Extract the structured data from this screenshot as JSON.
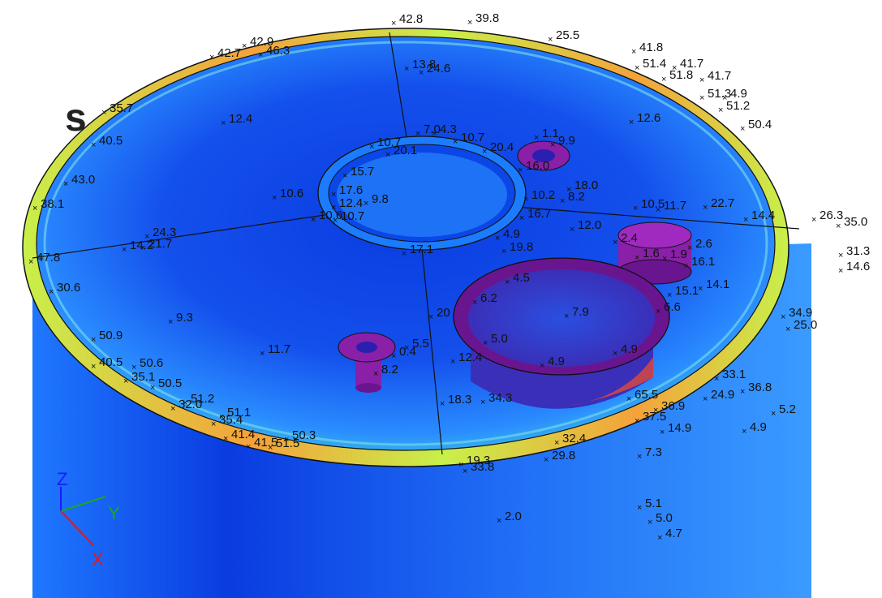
{
  "partial_heading": "s",
  "triad": {
    "z": "Z",
    "y": "Y",
    "x": "X"
  },
  "colors": {
    "low": "#0a3ce0",
    "mid_low": "#1f78ff",
    "mid": "#3fd0e0",
    "mid_high": "#c8f04a",
    "high": "#f4a23a",
    "feature": "#8a1fa8",
    "nozzle_dark": "#4a1aa8"
  },
  "labels": [
    {
      "text": "42.8"
    },
    {
      "text": "39.8"
    },
    {
      "text": "25.5"
    },
    {
      "text": "41.8"
    },
    {
      "text": "51.4"
    },
    {
      "text": "41.7"
    },
    {
      "text": "51.8"
    },
    {
      "text": "41.7"
    },
    {
      "text": "51.3"
    },
    {
      "text": "4.9"
    },
    {
      "text": "51.2"
    },
    {
      "text": "50.4"
    },
    {
      "text": "42.9"
    },
    {
      "text": "42.7"
    },
    {
      "text": "46.3"
    },
    {
      "text": "13.8"
    },
    {
      "text": "24.6"
    },
    {
      "text": "12.4"
    },
    {
      "text": "12.6"
    },
    {
      "text": "35.7"
    },
    {
      "text": "40.5"
    },
    {
      "text": "43.0"
    },
    {
      "text": "38.1"
    },
    {
      "text": "10.6"
    },
    {
      "text": "7.0"
    },
    {
      "text": "4.3"
    },
    {
      "text": "10.7"
    },
    {
      "text": "10.7"
    },
    {
      "text": "20.4"
    },
    {
      "text": "20.1"
    },
    {
      "text": "1.1"
    },
    {
      "text": "9.9"
    },
    {
      "text": "15.7"
    },
    {
      "text": "17.6"
    },
    {
      "text": "12.4"
    },
    {
      "text": "9.8"
    },
    {
      "text": "10.7"
    },
    {
      "text": "10.6"
    },
    {
      "text": "16.0"
    },
    {
      "text": "18.0"
    },
    {
      "text": "10.2"
    },
    {
      "text": "8.2"
    },
    {
      "text": "16.7"
    },
    {
      "text": "12.0"
    },
    {
      "text": "10.5"
    },
    {
      "text": "11.7"
    },
    {
      "text": "22.7"
    },
    {
      "text": "14.4"
    },
    {
      "text": "26.3"
    },
    {
      "text": "35.0"
    },
    {
      "text": "14.2"
    },
    {
      "text": "24.3"
    },
    {
      "text": "21.7"
    },
    {
      "text": "47.8"
    },
    {
      "text": "31.3"
    },
    {
      "text": "14.6"
    },
    {
      "text": "30.6"
    },
    {
      "text": "17.1"
    },
    {
      "text": "19.8"
    },
    {
      "text": "4.9"
    },
    {
      "text": "2.4"
    },
    {
      "text": "1.6"
    },
    {
      "text": "1.9"
    },
    {
      "text": "2.6"
    },
    {
      "text": "16.1"
    },
    {
      "text": "4.5"
    },
    {
      "text": "6.2"
    },
    {
      "text": "14.1"
    },
    {
      "text": "15.1"
    },
    {
      "text": "7.9"
    },
    {
      "text": "6.6"
    },
    {
      "text": "9.3"
    },
    {
      "text": "34.9"
    },
    {
      "text": "25.0"
    },
    {
      "text": "50.9"
    },
    {
      "text": "11.7"
    },
    {
      "text": "5.5"
    },
    {
      "text": "0.4"
    },
    {
      "text": "8.2"
    },
    {
      "text": "20"
    },
    {
      "text": "5.0"
    },
    {
      "text": "4.9"
    },
    {
      "text": "4.9"
    },
    {
      "text": "12.4"
    },
    {
      "text": "40.5"
    },
    {
      "text": "35.1"
    },
    {
      "text": "50.5"
    },
    {
      "text": "50.6"
    },
    {
      "text": "18.3"
    },
    {
      "text": "34.3"
    },
    {
      "text": "33.1"
    },
    {
      "text": "36.8"
    },
    {
      "text": "24.9"
    },
    {
      "text": "5.2"
    },
    {
      "text": "32.0"
    },
    {
      "text": "51.2"
    },
    {
      "text": "35.4"
    },
    {
      "text": "51.1"
    },
    {
      "text": "65.5"
    },
    {
      "text": "36.9"
    },
    {
      "text": "37.5"
    },
    {
      "text": "14.9"
    },
    {
      "text": "4.9"
    },
    {
      "text": "41.4"
    },
    {
      "text": "41.5"
    },
    {
      "text": "51.5"
    },
    {
      "text": "50.3"
    },
    {
      "text": "32.4"
    },
    {
      "text": "7.3"
    },
    {
      "text": "19.3"
    },
    {
      "text": "29.8"
    },
    {
      "text": "33.8"
    },
    {
      "text": "5.1"
    },
    {
      "text": "5.0"
    },
    {
      "text": "4.7"
    },
    {
      "text": "2.0"
    }
  ]
}
